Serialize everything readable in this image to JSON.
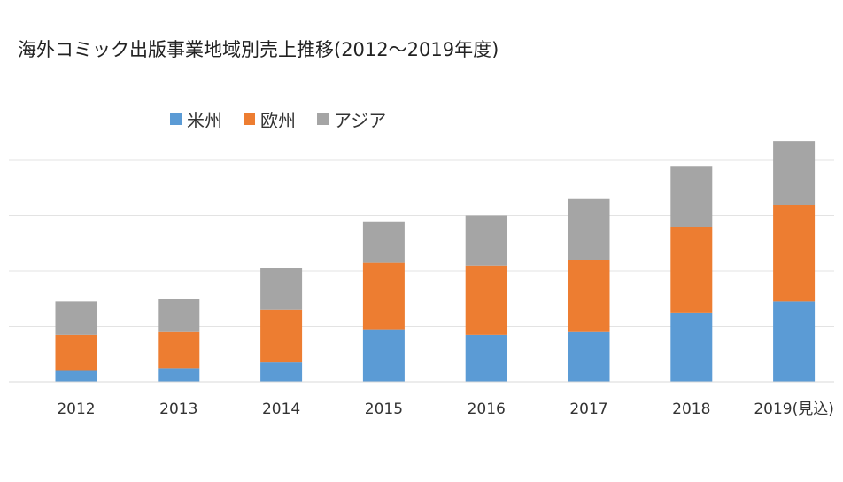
{
  "chart_data": {
    "type": "bar",
    "stacked": true,
    "title": "海外コミック出版事業地域別売上推移(2012〜2019年度)",
    "xlabel": "",
    "ylabel": "",
    "categories": [
      "2012",
      "2013",
      "2014",
      "2015",
      "2016",
      "2017",
      "2018",
      "2019(見込)"
    ],
    "series": [
      {
        "name": "米州",
        "color": "#5b9bd5",
        "values": [
          4,
          5,
          7,
          19,
          17,
          18,
          25,
          29
        ]
      },
      {
        "name": "欧州",
        "color": "#ed7d31",
        "values": [
          13,
          13,
          19,
          24,
          25,
          26,
          31,
          35
        ]
      },
      {
        "name": "アジア",
        "color": "#a5a5a5",
        "values": [
          12,
          12,
          15,
          15,
          18,
          22,
          22,
          23
        ]
      }
    ],
    "ylim": [
      0,
      100
    ],
    "grid": true,
    "legend_position": "top-left"
  }
}
